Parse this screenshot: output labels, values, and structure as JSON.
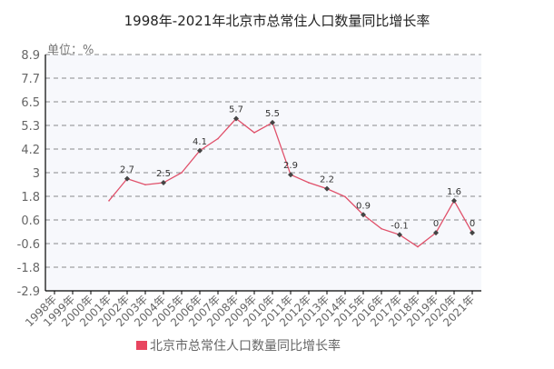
{
  "chart_data": {
    "type": "line",
    "title": "1998年-2021年北京市总常住人口数量同比增长率",
    "unit_label": "单位：%",
    "ylim": [
      -2.9,
      8.9
    ],
    "y_ticks": [
      "8.9",
      "7.7",
      "6.5",
      "5.3",
      "4.2",
      "3",
      "1.8",
      "0.6",
      "-0.6",
      "-1.8",
      "-2.9"
    ],
    "grid": true,
    "legend_position": "bottom",
    "categories": [
      "1998年",
      "1999年",
      "2000年",
      "2001年",
      "2002年",
      "2003年",
      "2004年",
      "2005年",
      "2006年",
      "2007年",
      "2008年",
      "2009年",
      "2010年",
      "2011年",
      "2012年",
      "2013年",
      "2014年",
      "2015年",
      "2016年",
      "2017年",
      "2018年",
      "2019年",
      "2020年",
      "2021年"
    ],
    "series": [
      {
        "name": "北京市总常住人口数量同比增长率",
        "color": "#e0506a",
        "values": [
          null,
          null,
          null,
          1.6,
          2.7,
          2.4,
          2.5,
          3.0,
          4.1,
          4.7,
          5.7,
          5.0,
          5.5,
          2.9,
          2.5,
          2.2,
          1.8,
          0.9,
          0.2,
          -0.1,
          -0.7,
          0,
          1.6,
          0
        ],
        "labels": [
          null,
          null,
          null,
          null,
          "2.7",
          null,
          "2.5",
          null,
          "4.1",
          null,
          "5.7",
          null,
          "5.5",
          "2.9",
          null,
          "2.2",
          null,
          "0.9",
          null,
          "-0.1",
          null,
          "0",
          "1.6",
          "0"
        ]
      }
    ]
  }
}
